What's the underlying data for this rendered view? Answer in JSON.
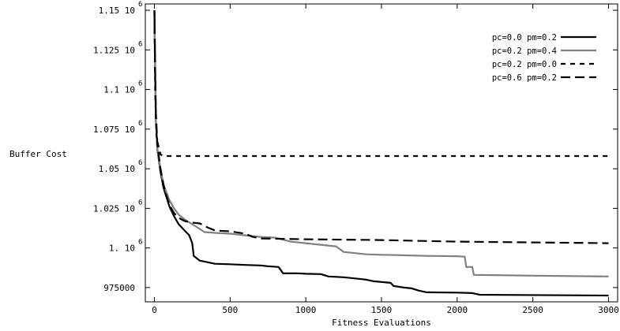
{
  "chart_data": {
    "type": "line",
    "title": "",
    "xlabel": "Fitness Evaluations",
    "ylabel": "Buffer Cost",
    "xlim": [
      -60,
      3060
    ],
    "ylim": [
      966000,
      1154000
    ],
    "grid": false,
    "legend_position": "top-right",
    "x_ticks": [
      0,
      500,
      1000,
      1500,
      2000,
      2500,
      3000
    ],
    "x_tick_labels": [
      "0",
      "500",
      "1000",
      "1500",
      "2000",
      "2500",
      "3000"
    ],
    "y_ticks": [
      {
        "value": 975000,
        "label": "975000",
        "exp": ""
      },
      {
        "value": 1000000,
        "label": "1. 10",
        "exp": "6"
      },
      {
        "value": 1025000,
        "label": "1.025 10",
        "exp": "6"
      },
      {
        "value": 1050000,
        "label": "1.05 10",
        "exp": "6"
      },
      {
        "value": 1075000,
        "label": "1.075 10",
        "exp": "6"
      },
      {
        "value": 1100000,
        "label": "1.1 10",
        "exp": "6"
      },
      {
        "value": 1125000,
        "label": "1.125 10",
        "exp": "6"
      },
      {
        "value": 1150000,
        "label": "1.15 10",
        "exp": "6"
      }
    ],
    "series": [
      {
        "name": "pc=0.0 pm=0.2",
        "color": "#000000",
        "dash": "solid",
        "points": [
          [
            0,
            1150000
          ],
          [
            5,
            1110000
          ],
          [
            10,
            1080000
          ],
          [
            20,
            1062000
          ],
          [
            40,
            1048000
          ],
          [
            60,
            1038000
          ],
          [
            80,
            1032000
          ],
          [
            100,
            1026000
          ],
          [
            130,
            1020000
          ],
          [
            160,
            1015000
          ],
          [
            200,
            1011000
          ],
          [
            230,
            1008000
          ],
          [
            250,
            1003000
          ],
          [
            260,
            995000
          ],
          [
            300,
            992000
          ],
          [
            350,
            991000
          ],
          [
            400,
            990000
          ],
          [
            500,
            989700
          ],
          [
            600,
            989300
          ],
          [
            700,
            989000
          ],
          [
            750,
            988500
          ],
          [
            820,
            988000
          ],
          [
            850,
            984000
          ],
          [
            950,
            984000
          ],
          [
            1000,
            983700
          ],
          [
            1100,
            983500
          ],
          [
            1150,
            982000
          ],
          [
            1250,
            981500
          ],
          [
            1300,
            981000
          ],
          [
            1350,
            980500
          ],
          [
            1400,
            980000
          ],
          [
            1450,
            979000
          ],
          [
            1560,
            978000
          ],
          [
            1580,
            976000
          ],
          [
            1650,
            975000
          ],
          [
            1700,
            974500
          ],
          [
            1750,
            973000
          ],
          [
            1800,
            972000
          ],
          [
            2000,
            971800
          ],
          [
            2100,
            971500
          ],
          [
            2150,
            970500
          ],
          [
            3000,
            970000
          ]
        ]
      },
      {
        "name": "pc=0.2 pm=0.4",
        "color": "#808080",
        "dash": "solid",
        "points": [
          [
            0,
            1150000
          ],
          [
            5,
            1105000
          ],
          [
            10,
            1080000
          ],
          [
            20,
            1062000
          ],
          [
            40,
            1050000
          ],
          [
            60,
            1040000
          ],
          [
            80,
            1035000
          ],
          [
            100,
            1030000
          ],
          [
            130,
            1025000
          ],
          [
            160,
            1021000
          ],
          [
            200,
            1018000
          ],
          [
            250,
            1015000
          ],
          [
            300,
            1012000
          ],
          [
            330,
            1010000
          ],
          [
            400,
            1009500
          ],
          [
            500,
            1009000
          ],
          [
            600,
            1008000
          ],
          [
            700,
            1007000
          ],
          [
            800,
            1006500
          ],
          [
            900,
            1004000
          ],
          [
            1000,
            1003000
          ],
          [
            1100,
            1002000
          ],
          [
            1200,
            1001000
          ],
          [
            1250,
            997500
          ],
          [
            1300,
            997000
          ],
          [
            1400,
            996000
          ],
          [
            1500,
            995700
          ],
          [
            1600,
            995500
          ],
          [
            1800,
            995000
          ],
          [
            2000,
            994800
          ],
          [
            2050,
            994500
          ],
          [
            2060,
            988000
          ],
          [
            2100,
            988000
          ],
          [
            2110,
            983000
          ],
          [
            2500,
            982500
          ],
          [
            3000,
            982000
          ]
        ]
      },
      {
        "name": "pc=0.2 pm=0.0",
        "color": "#000000",
        "dash": "short",
        "points": [
          [
            0,
            1150000
          ],
          [
            5,
            1100000
          ],
          [
            10,
            1080000
          ],
          [
            15,
            1070000
          ],
          [
            25,
            1065000
          ],
          [
            40,
            1059000
          ],
          [
            60,
            1058000
          ],
          [
            3000,
            1058000
          ]
        ]
      },
      {
        "name": "pc=0.6 pm=0.2",
        "color": "#000000",
        "dash": "long",
        "points": [
          [
            0,
            1150000
          ],
          [
            5,
            1110000
          ],
          [
            10,
            1085000
          ],
          [
            20,
            1065000
          ],
          [
            40,
            1050000
          ],
          [
            60,
            1040000
          ],
          [
            80,
            1033000
          ],
          [
            100,
            1027000
          ],
          [
            130,
            1022000
          ],
          [
            160,
            1019000
          ],
          [
            200,
            1017000
          ],
          [
            250,
            1016000
          ],
          [
            300,
            1015500
          ],
          [
            350,
            1013000
          ],
          [
            400,
            1011000
          ],
          [
            500,
            1010500
          ],
          [
            600,
            1009000
          ],
          [
            650,
            1007000
          ],
          [
            700,
            1006000
          ],
          [
            1000,
            1005500
          ],
          [
            1500,
            1005000
          ],
          [
            2000,
            1004000
          ],
          [
            2500,
            1003500
          ],
          [
            3000,
            1003000
          ]
        ]
      }
    ]
  }
}
